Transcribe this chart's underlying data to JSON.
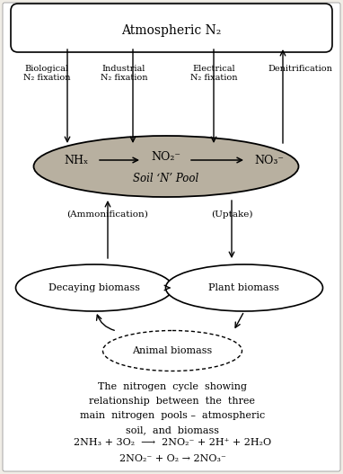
{
  "bg_color": "#f0ede6",
  "title_text": "Atmospheric N₂",
  "soil_label": "Soil ‘N’ Pool",
  "nh_label": "NHₓ",
  "no2_label": "NO₂⁻",
  "no3_label": "NO₃⁻",
  "bio_fix": "Biological\nN₂ fixation",
  "ind_fix": "Industrial\nN₂ fixation",
  "elec_fix": "Electrical\nN₂ fixation",
  "denitrif": "Denitrification",
  "ammonif": "(Ammonification)",
  "uptake": "(Uptake)",
  "decay_label": "Decaying biomass",
  "plant_label": "Plant biomass",
  "animal_label": "Animal biomass",
  "caption_line1": "The  nitrogen  cycle  showing",
  "caption_line2": "relationship  between  the  three",
  "caption_line3": "main  nitrogen  pools –  atmospheric",
  "caption_line4": "soil,  and  biomass",
  "eq1a": "2NH₃ + 3O₂",
  "eq1b": "⟶",
  "eq1c": "2NO₂⁻ + 2H⁺ + 2H₂O",
  "eq2a": "2NO₂⁻ + O₂",
  "eq2b": "→",
  "eq2c": "2NO₃⁻",
  "soil_color": "#b8b0a0",
  "box_bg": "white"
}
